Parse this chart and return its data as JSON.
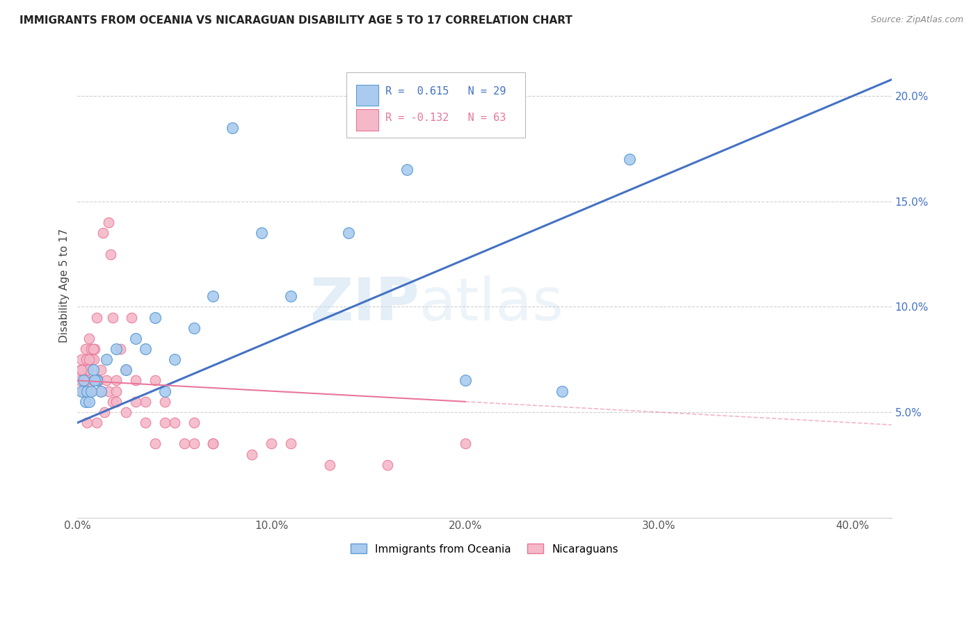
{
  "title": "IMMIGRANTS FROM OCEANIA VS NICARAGUAN DISABILITY AGE 5 TO 17 CORRELATION CHART",
  "source": "Source: ZipAtlas.com",
  "ylabel_left": "Disability Age 5 to 17",
  "ylim": [
    0.0,
    22.0
  ],
  "xlim": [
    0.0,
    42.0
  ],
  "legend_blue_r": "0.615",
  "legend_blue_n": "29",
  "legend_pink_r": "-0.132",
  "legend_pink_n": "63",
  "blue_color": "#aacbee",
  "pink_color": "#f4b8c8",
  "blue_edge_color": "#5b9bd5",
  "pink_edge_color": "#e8779a",
  "blue_line_color": "#4472c4",
  "pink_line_color": "#e8779a",
  "watermark_zip": "ZIP",
  "watermark_atlas": "atlas",
  "bg_color": "#ffffff",
  "grid_color": "#d0d0d0",
  "blue_scatter_x": [
    0.2,
    0.3,
    0.4,
    0.5,
    0.6,
    0.8,
    1.0,
    1.2,
    1.5,
    2.0,
    2.5,
    3.0,
    3.5,
    4.0,
    5.0,
    6.0,
    7.0,
    8.0,
    9.5,
    11.0,
    14.0,
    17.0,
    20.0,
    25.0,
    28.5,
    1.0,
    0.7,
    0.9,
    4.5
  ],
  "blue_scatter_y": [
    6.0,
    6.5,
    5.5,
    6.0,
    5.5,
    7.0,
    6.5,
    6.0,
    7.5,
    8.0,
    7.0,
    8.5,
    8.0,
    9.5,
    7.5,
    9.0,
    10.5,
    18.5,
    13.5,
    10.5,
    13.5,
    16.5,
    6.5,
    6.0,
    17.0,
    6.5,
    6.0,
    6.5,
    6.0
  ],
  "pink_scatter_x": [
    0.1,
    0.15,
    0.2,
    0.25,
    0.3,
    0.35,
    0.4,
    0.45,
    0.5,
    0.55,
    0.6,
    0.65,
    0.7,
    0.75,
    0.8,
    0.85,
    0.9,
    1.0,
    1.1,
    1.2,
    1.3,
    1.5,
    1.6,
    1.7,
    1.8,
    2.0,
    2.2,
    2.5,
    2.8,
    3.0,
    3.5,
    4.0,
    4.5,
    5.0,
    6.0,
    7.0,
    0.4,
    0.6,
    0.8,
    1.0,
    1.2,
    1.4,
    1.6,
    1.8,
    2.0,
    2.5,
    3.0,
    3.5,
    4.5,
    5.5,
    7.0,
    9.0,
    11.0,
    13.0,
    16.0,
    20.0,
    0.3,
    0.5,
    2.0,
    4.0,
    6.0,
    10.0,
    0.2
  ],
  "pink_scatter_y": [
    6.5,
    7.0,
    7.5,
    6.0,
    7.0,
    6.5,
    8.0,
    7.5,
    6.5,
    7.0,
    8.5,
    6.0,
    8.0,
    7.5,
    6.5,
    7.5,
    8.0,
    9.5,
    6.5,
    7.0,
    13.5,
    6.5,
    14.0,
    12.5,
    9.5,
    6.5,
    8.0,
    7.0,
    9.5,
    6.5,
    5.5,
    6.5,
    5.5,
    4.5,
    4.5,
    3.5,
    6.0,
    7.5,
    8.0,
    4.5,
    6.0,
    5.0,
    6.0,
    5.5,
    6.0,
    5.0,
    5.5,
    4.5,
    4.5,
    3.5,
    3.5,
    3.0,
    3.5,
    2.5,
    2.5,
    3.5,
    6.0,
    4.5,
    5.5,
    3.5,
    3.5,
    3.5,
    7.0
  ]
}
